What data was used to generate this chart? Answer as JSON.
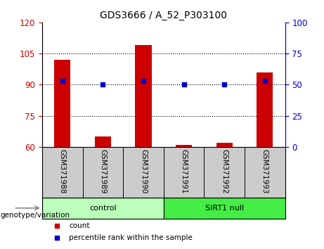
{
  "title": "GDS3666 / A_52_P303100",
  "samples": [
    "GSM371988",
    "GSM371989",
    "GSM371990",
    "GSM371991",
    "GSM371992",
    "GSM371993"
  ],
  "counts": [
    102,
    65,
    109,
    61,
    62,
    96
  ],
  "percentiles": [
    53,
    50,
    53,
    50,
    50,
    53
  ],
  "ylim_left": [
    60,
    120
  ],
  "ylim_right": [
    0,
    100
  ],
  "yticks_left": [
    60,
    75,
    90,
    105,
    120
  ],
  "yticks_right": [
    0,
    25,
    50,
    75,
    100
  ],
  "bar_color": "#cc0000",
  "dot_color": "#0000cc",
  "bar_width": 0.4,
  "group_control_color": "#bbffbb",
  "group_sirt1_color": "#44ee44",
  "group_label": "genotype/variation",
  "legend_count": "count",
  "legend_percentile": "percentile rank within the sample",
  "grid_yticks": [
    75,
    90,
    105
  ],
  "tick_bg_color": "#cccccc",
  "control_label": "control",
  "sirt1_label": "SIRT1 null"
}
